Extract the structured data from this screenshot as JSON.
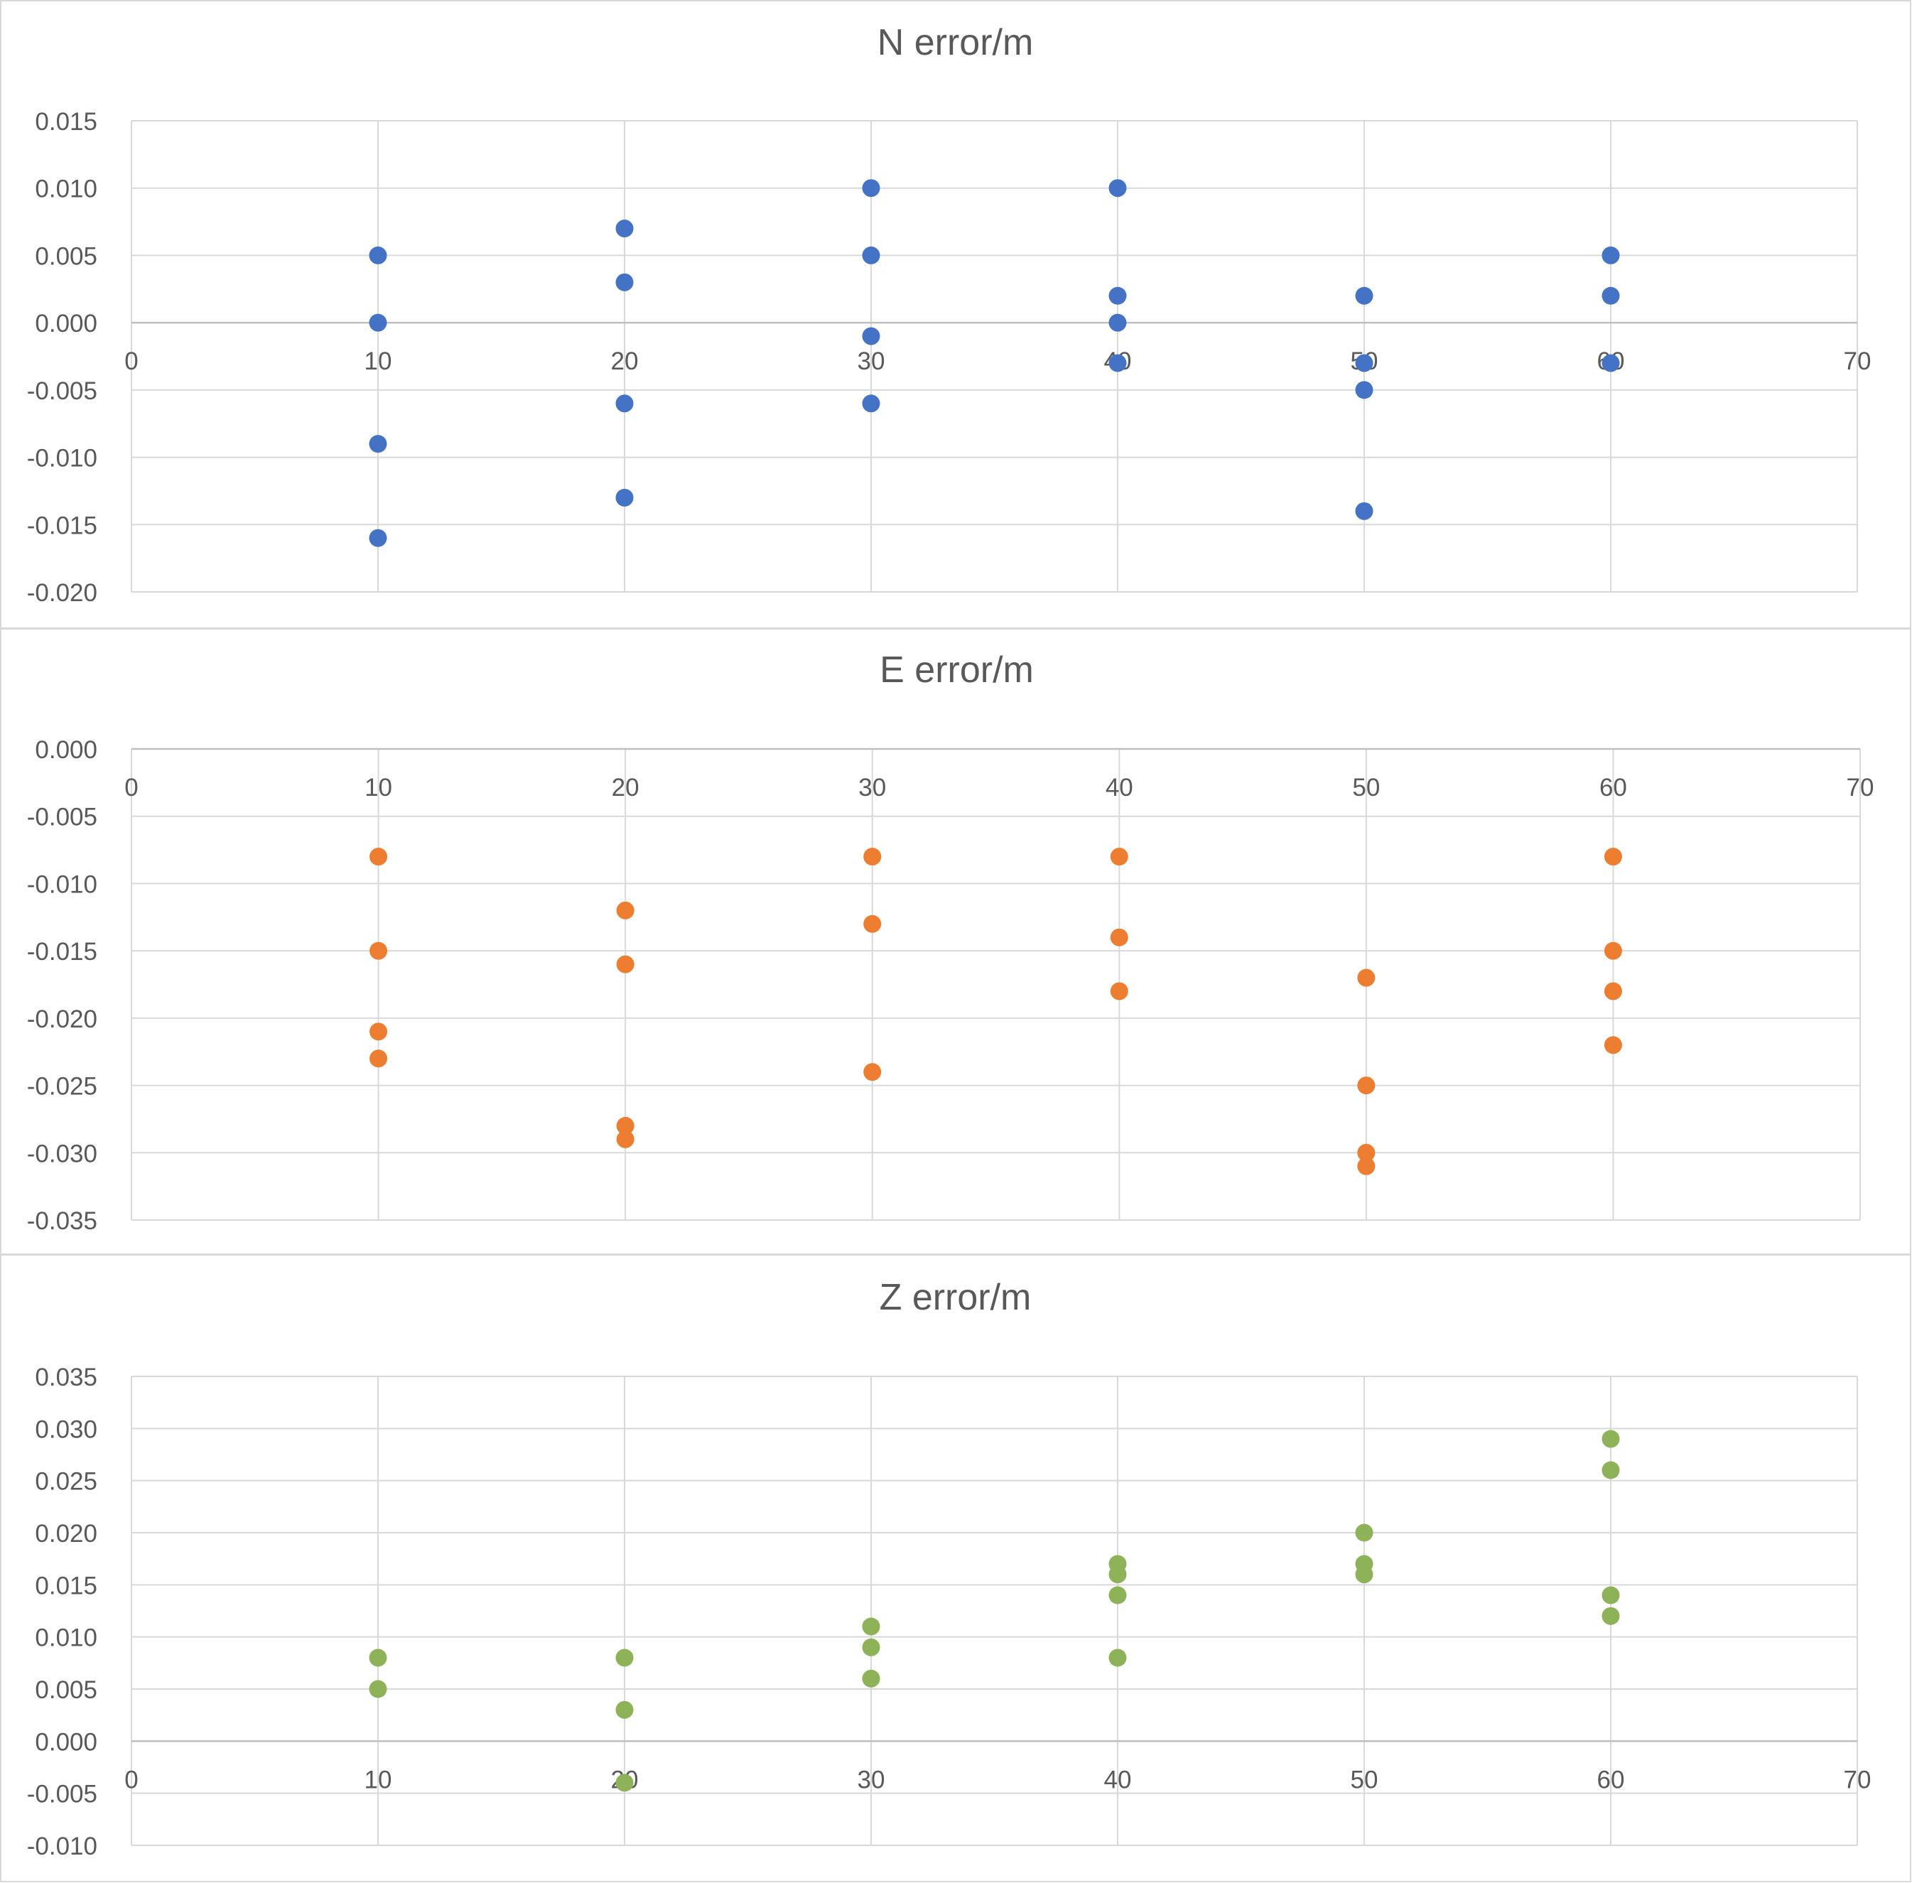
{
  "chart_data": [
    {
      "type": "scatter",
      "title": "N error/m",
      "color": "#4472C4",
      "xlim": [
        0,
        70
      ],
      "xticks": [
        "0",
        "10",
        "20",
        "30",
        "40",
        "50",
        "60",
        "70"
      ],
      "ylim": [
        -0.02,
        0.015
      ],
      "yticks": [
        "0.015",
        "0.010",
        "0.005",
        "0.000",
        "-0.005",
        "-0.010",
        "-0.015",
        "-0.020"
      ],
      "grid": true,
      "points": [
        [
          10,
          0.005
        ],
        [
          10,
          0.0
        ],
        [
          10,
          -0.009
        ],
        [
          10,
          -0.016
        ],
        [
          20,
          0.007
        ],
        [
          20,
          0.003
        ],
        [
          20,
          -0.006
        ],
        [
          20,
          -0.013
        ],
        [
          30,
          0.01
        ],
        [
          30,
          0.005
        ],
        [
          30,
          -0.001
        ],
        [
          30,
          -0.006
        ],
        [
          40,
          0.01
        ],
        [
          40,
          0.002
        ],
        [
          40,
          0.0
        ],
        [
          40,
          -0.003
        ],
        [
          50,
          0.002
        ],
        [
          50,
          -0.003
        ],
        [
          50,
          -0.005
        ],
        [
          50,
          -0.014
        ],
        [
          60,
          0.005
        ],
        [
          60,
          0.002
        ],
        [
          60,
          -0.003
        ]
      ]
    },
    {
      "type": "scatter",
      "title": "E error/m",
      "color": "#ED7D31",
      "xlim": [
        0,
        70
      ],
      "xticks": [
        "0",
        "10",
        "20",
        "30",
        "40",
        "50",
        "60",
        "70"
      ],
      "ylim": [
        -0.035,
        0.0
      ],
      "yticks": [
        "0.000",
        "-0.005",
        "-0.010",
        "-0.015",
        "-0.020",
        "-0.025",
        "-0.030",
        "-0.035"
      ],
      "grid": true,
      "points": [
        [
          10,
          -0.008
        ],
        [
          10,
          -0.015
        ],
        [
          10,
          -0.021
        ],
        [
          10,
          -0.023
        ],
        [
          20,
          -0.012
        ],
        [
          20,
          -0.016
        ],
        [
          20,
          -0.028
        ],
        [
          20,
          -0.029
        ],
        [
          30,
          -0.008
        ],
        [
          30,
          -0.013
        ],
        [
          30,
          -0.024
        ],
        [
          40,
          -0.008
        ],
        [
          40,
          -0.014
        ],
        [
          40,
          -0.018
        ],
        [
          50,
          -0.017
        ],
        [
          50,
          -0.025
        ],
        [
          50,
          -0.03
        ],
        [
          50,
          -0.031
        ],
        [
          60,
          -0.008
        ],
        [
          60,
          -0.015
        ],
        [
          60,
          -0.018
        ],
        [
          60,
          -0.022
        ]
      ]
    },
    {
      "type": "scatter",
      "title": "Z error/m",
      "color": "#8DB257",
      "xlim": [
        0,
        70
      ],
      "xticks": [
        "0",
        "10",
        "20",
        "30",
        "40",
        "50",
        "60",
        "70"
      ],
      "ylim": [
        -0.01,
        0.035
      ],
      "yticks": [
        "0.035",
        "0.030",
        "0.025",
        "0.020",
        "0.015",
        "0.010",
        "0.005",
        "0.000",
        "-0.005",
        "-0.010"
      ],
      "grid": true,
      "points": [
        [
          10,
          0.008
        ],
        [
          10,
          0.005
        ],
        [
          20,
          0.008
        ],
        [
          20,
          0.003
        ],
        [
          20,
          -0.004
        ],
        [
          30,
          0.011
        ],
        [
          30,
          0.009
        ],
        [
          30,
          0.006
        ],
        [
          40,
          0.017
        ],
        [
          40,
          0.016
        ],
        [
          40,
          0.014
        ],
        [
          40,
          0.008
        ],
        [
          50,
          0.02
        ],
        [
          50,
          0.017
        ],
        [
          50,
          0.016
        ],
        [
          60,
          0.029
        ],
        [
          60,
          0.026
        ],
        [
          60,
          0.014
        ],
        [
          60,
          0.012
        ]
      ]
    }
  ]
}
